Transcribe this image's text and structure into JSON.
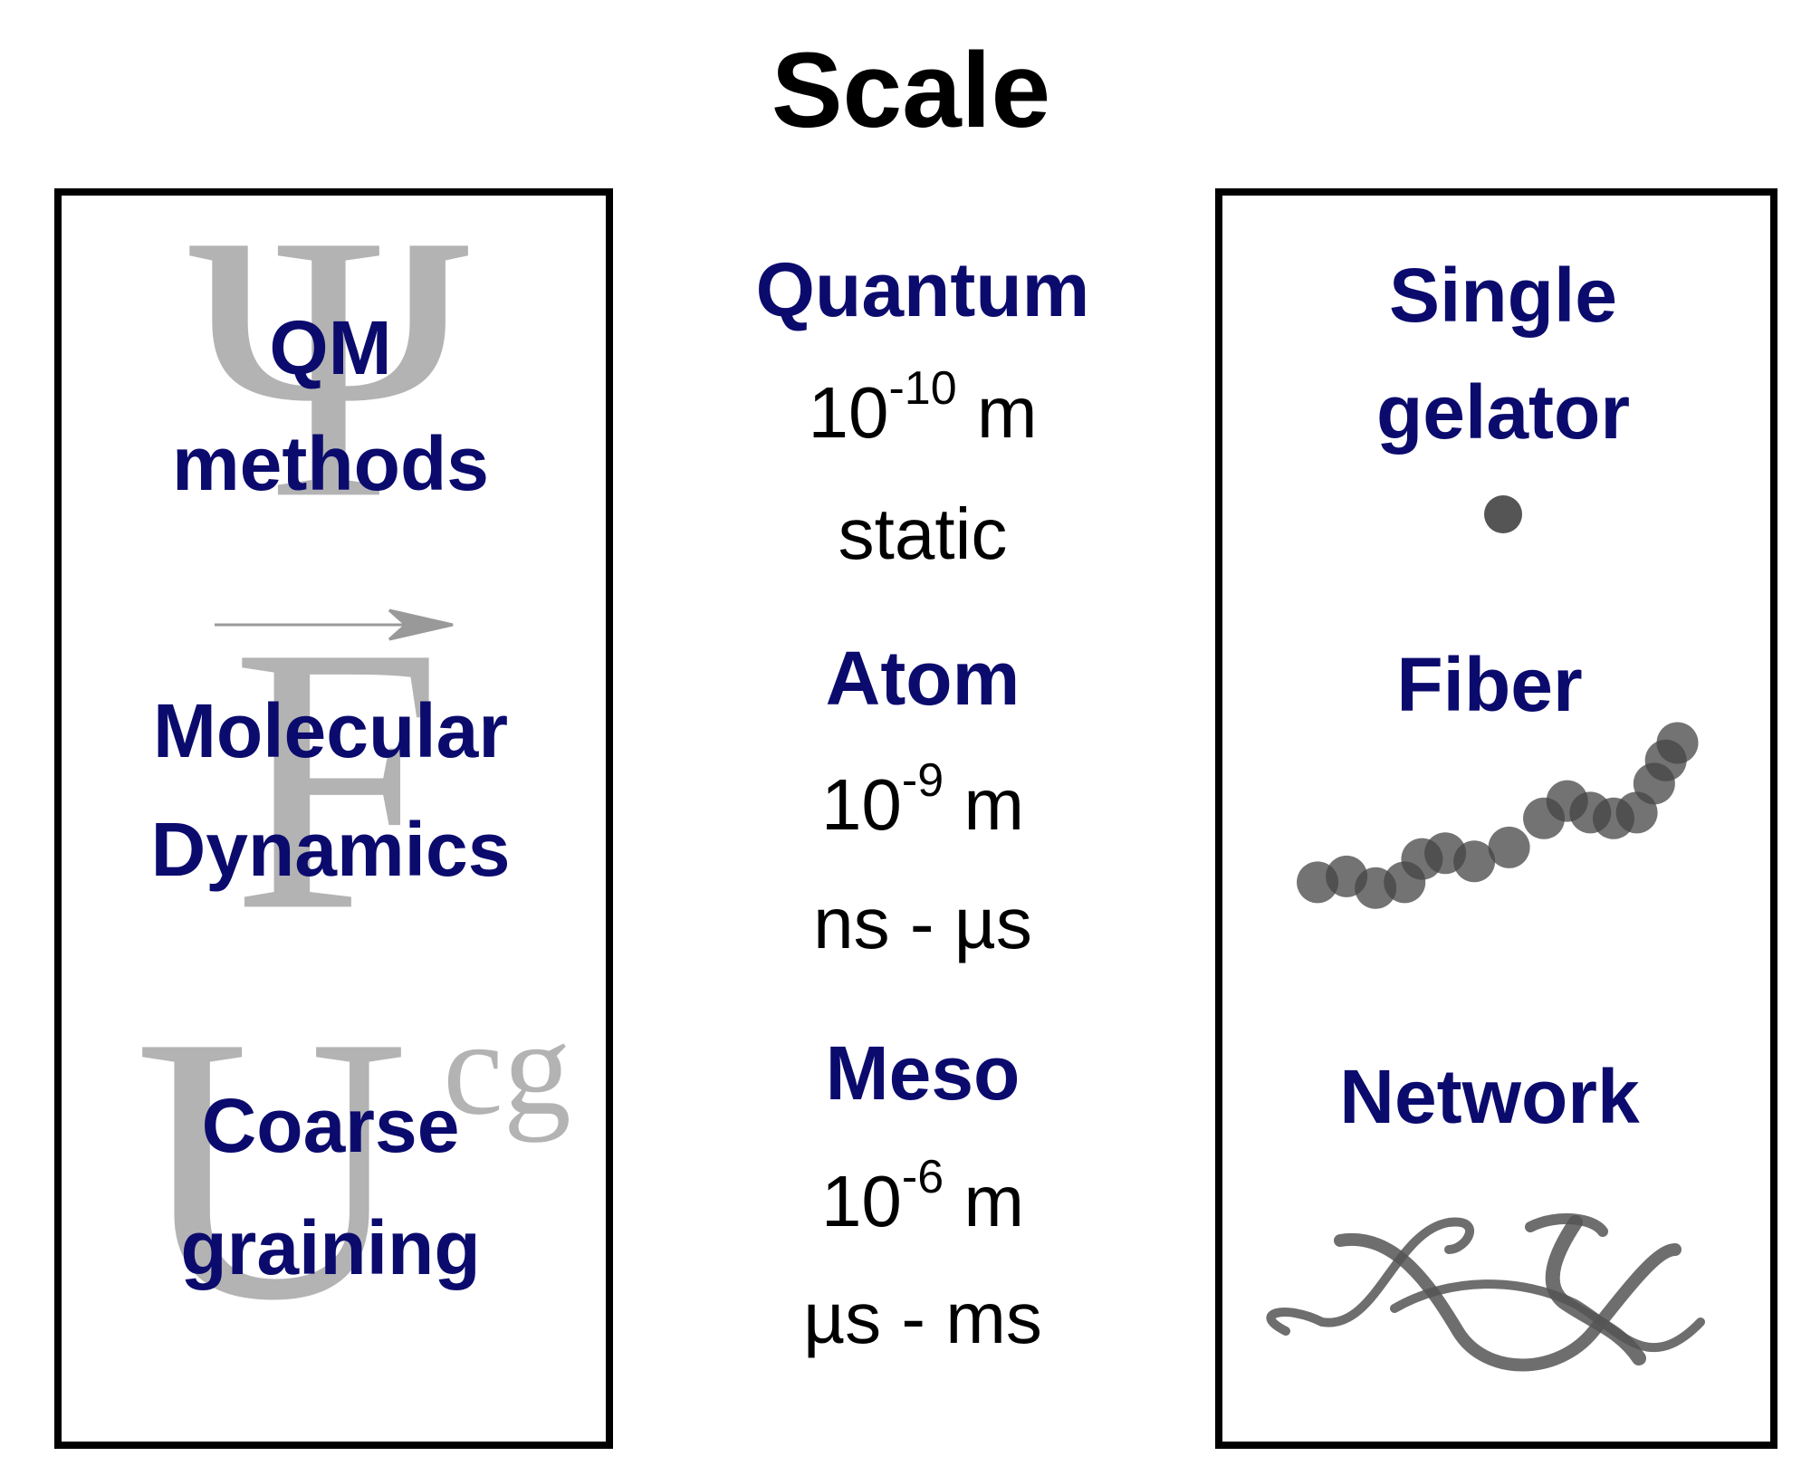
{
  "title": "Scale",
  "methods": [
    {
      "symbol": "Ψ",
      "lines": [
        "QM",
        "methods"
      ]
    },
    {
      "symbol": "F",
      "lines": [
        "Molecular",
        "Dynamics"
      ]
    },
    {
      "symbol": "U",
      "symbol_sup": "cg",
      "lines": [
        "Coarse",
        "graining"
      ]
    }
  ],
  "scales": [
    {
      "name": "Quantum",
      "length": {
        "base": "10",
        "exponent": "-10",
        "unit": "m"
      },
      "time": "static"
    },
    {
      "name": "Atom",
      "length": {
        "base": "10",
        "exponent": "-9",
        "unit": "m"
      },
      "time": "ns - µs"
    },
    {
      "name": "Meso",
      "length": {
        "base": "10",
        "exponent": "-6",
        "unit": "m"
      },
      "time": "µs - ms"
    }
  ],
  "systems": [
    {
      "lines": [
        "Single",
        "gelator"
      ]
    },
    {
      "lines": [
        "Fiber"
      ]
    },
    {
      "lines": [
        "Network"
      ]
    }
  ]
}
